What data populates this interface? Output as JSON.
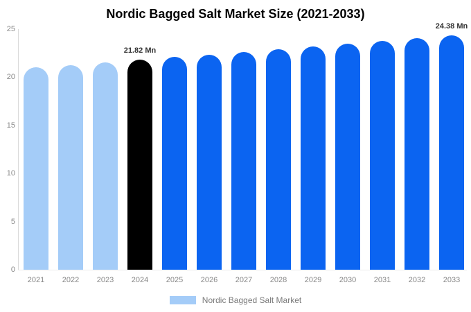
{
  "title": "Nordic Bagged Salt Market Size (2021-2033)",
  "chart_data": {
    "type": "bar",
    "title": "Nordic Bagged Salt Market Size (2021-2033)",
    "categories": [
      "2021",
      "2022",
      "2023",
      "2024",
      "2025",
      "2026",
      "2027",
      "2028",
      "2029",
      "2030",
      "2031",
      "2032",
      "2033"
    ],
    "values": [
      21.02,
      21.28,
      21.55,
      21.82,
      22.09,
      22.36,
      22.64,
      22.92,
      23.2,
      23.49,
      23.78,
      24.08,
      24.38
    ],
    "unit": "Mn",
    "bar_colors": [
      "#a4ccf8",
      "#a4ccf8",
      "#a4ccf8",
      "#000000",
      "#0b64f1",
      "#0b64f1",
      "#0b64f1",
      "#0b64f1",
      "#0b64f1",
      "#0b64f1",
      "#0b64f1",
      "#0b64f1",
      "#0b64f1"
    ],
    "annotations": [
      {
        "category": "2024",
        "text": "21.82 Mn"
      },
      {
        "category": "2033",
        "text": "24.38 Mn"
      }
    ],
    "xlabel": "",
    "ylabel": "",
    "ylim": [
      0,
      25
    ],
    "yticks": [
      0,
      5,
      10,
      15,
      20,
      25
    ],
    "grid": false,
    "legend": {
      "position": "bottom",
      "items": [
        {
          "label": "Nordic Bagged Salt Market",
          "color": "#a4ccf8"
        }
      ]
    },
    "colors": {
      "historical": "#a4ccf8",
      "highlight": "#000000",
      "forecast": "#0b64f1",
      "axis_text": "#888888",
      "annotation_text": "#333333"
    }
  }
}
